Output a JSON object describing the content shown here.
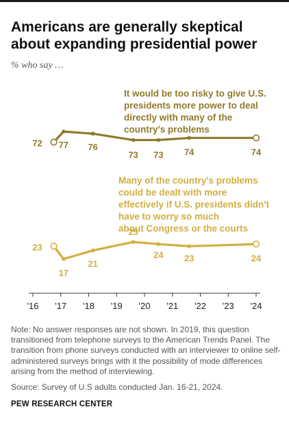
{
  "title": "Americans are generally skeptical about expanding presidential power",
  "subtitle": "% who say …",
  "note": "Note: No answer responses are not shown. In 2019, this question transitioned from telephone surveys to the American Trends Panel. The transition from phone surveys conducted with an interviewer to online self-administered surveys brings with it the possibility of mode differences arising from the method of interviewing.",
  "source": "Source: Survey of U.S adults conducted Jan. 16-21, 2024.",
  "organization": "PEW RESEARCH CENTER",
  "chart_data": {
    "type": "line",
    "xlim": [
      2016,
      2024
    ],
    "ylim": [
      10,
      85
    ],
    "x_ticks": [
      2016,
      2017,
      2018,
      2019,
      2020,
      2021,
      2022,
      2023,
      2024
    ],
    "x_tick_labels": [
      "'16",
      "'17",
      "'18",
      "'19",
      "'20",
      "'21",
      "'22",
      "'23",
      "'24"
    ],
    "grid": false,
    "legend": "none (direct labels)",
    "series": [
      {
        "name": "It would be too risky to give U.S. presidents more power to deal directly with many of the country's problems",
        "label_lines": [
          "It would be too risky to give U.S.",
          "presidents more power to deal",
          "directly with many of the",
          "country's problems"
        ],
        "color": "#8f7a2b",
        "x": [
          2016.75,
          2017.1,
          2018.15,
          2019.6,
          2020.5,
          2021.6,
          2024.0
        ],
        "values": [
          72,
          77,
          76,
          73,
          73,
          74,
          74
        ],
        "labels": [
          "72",
          "77",
          "76",
          "73",
          "73",
          "74",
          "74"
        ]
      },
      {
        "name": "Many of the country's problems could be dealt with more effectively if U.S. presidents didn't have to worry so much about Congress or the courts",
        "label_lines": [
          "Many of the country's problems",
          "could be dealt with more",
          "effectively if U.S. presidents didn't",
          "have to worry so much",
          "about Congress or the courts"
        ],
        "color": "#d2ae3e",
        "x": [
          2016.75,
          2017.1,
          2018.15,
          2019.6,
          2020.5,
          2021.6,
          2024.0
        ],
        "values": [
          23,
          17,
          21,
          25,
          24,
          23,
          24
        ],
        "labels": [
          "23",
          "17",
          "21",
          "25",
          "24",
          "23",
          "24"
        ]
      }
    ]
  }
}
